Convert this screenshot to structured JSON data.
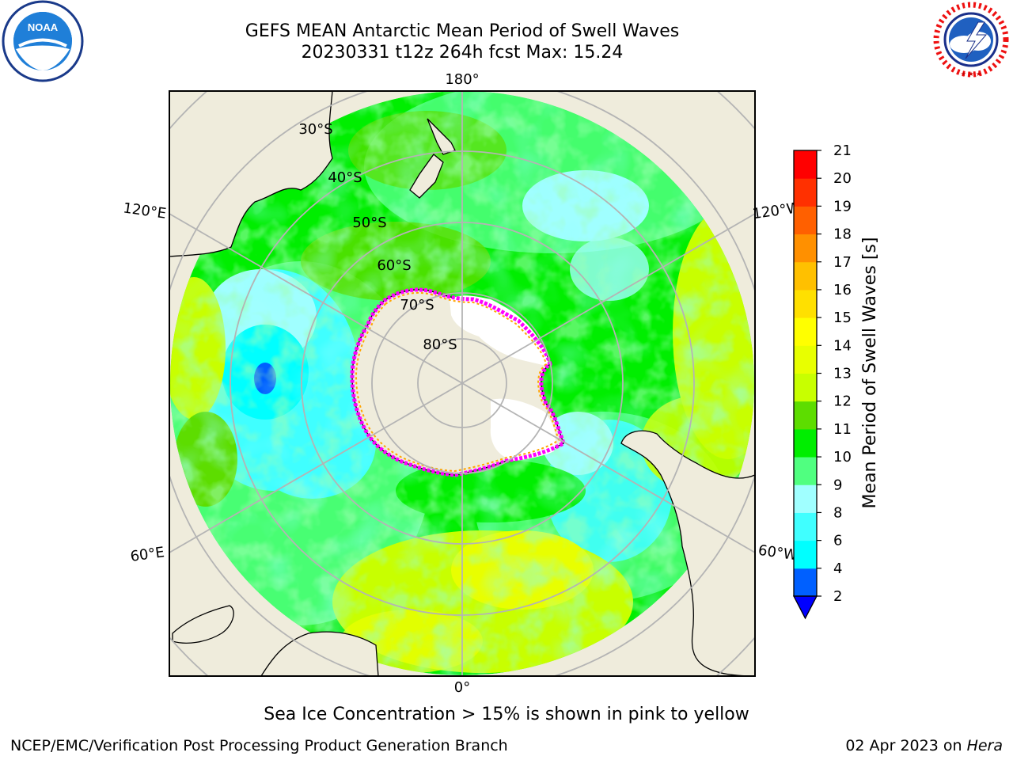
{
  "title_line1": "GEFS MEAN Antarctic Mean Period of Swell Waves",
  "title_line2": "20230331 t12z 264h fcst   Max: 15.24",
  "caption": "Sea Ice Concentration > 15% is shown in pink to yellow",
  "footer_left": "NCEP/EMC/Verification Post Processing Product Generation Branch",
  "footer_right_prefix": "02 Apr 2023 on ",
  "footer_right_host": "Hera",
  "logos": {
    "left": "noaa-logo",
    "right": "nws-logo"
  },
  "map": {
    "projection": "south-polar-stereographic",
    "longitude_labels": [
      "180°",
      "120°E",
      "120°W",
      "60°E",
      "60°W",
      "0°"
    ],
    "latitude_labels": [
      "30°S",
      "40°S",
      "50°S",
      "60°S",
      "70°S",
      "80°S"
    ],
    "land_color": "#efecdc",
    "ice_edge_colors": [
      "#ff00ff",
      "#ffa500",
      "#ffff00"
    ]
  },
  "colorbar": {
    "label": "Mean Period of Swell Waves [s]",
    "ticks": [
      "2",
      "4",
      "6",
      "8",
      "9",
      "10",
      "11",
      "12",
      "13",
      "14",
      "15",
      "16",
      "17",
      "18",
      "19",
      "20",
      "21"
    ],
    "colors": [
      "#0060ff",
      "#00ffff",
      "#40ffff",
      "#a0ffff",
      "#50ff80",
      "#00ee00",
      "#5ddd00",
      "#c8ff00",
      "#e8ff00",
      "#ffff00",
      "#ffe000",
      "#ffc000",
      "#ff9000",
      "#ff6000",
      "#ff3000",
      "#ff0000"
    ],
    "under_color": "#0000ff"
  }
}
